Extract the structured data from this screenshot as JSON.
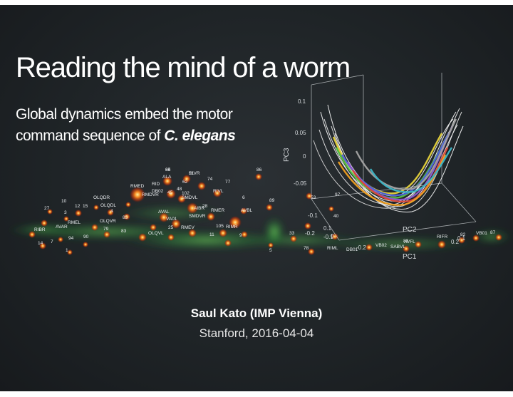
{
  "slide": {
    "title": "Reading the mind of a worm",
    "subtitle_line1": "Global dynamics embed the motor",
    "subtitle_line2_prefix": "command sequence of ",
    "subtitle_line2_species": "C. elegans",
    "author": "Saul Kato (IMP Vienna)",
    "venue_date": "Stanford, 2016-04-04"
  },
  "neuron_image": {
    "labels": [
      "34",
      "RIVR",
      "ALA",
      "74",
      "77",
      "RIVL",
      "86",
      "RMED",
      "RID",
      "62",
      "RMDVR",
      "45",
      "48",
      "OLQDR",
      "89",
      "10",
      "53",
      "97",
      "12",
      "15",
      "OLQDL",
      "27",
      "4",
      "RMER",
      "AVBL",
      "85",
      "RMEL",
      "OLQVR",
      "SMDVL",
      "AIBR",
      "RIMR",
      "79",
      "83",
      "OLQVL",
      "25",
      "RMEV",
      "33",
      "40",
      "90",
      "94",
      "14",
      "7",
      "1",
      "5",
      "11",
      "87",
      "RIML",
      "DB01",
      "VB02",
      "SABVL",
      "AVFL",
      "RIFR",
      "VB01",
      "DB02",
      "VA01",
      "SMDVR",
      "AVAL",
      "RIBR",
      "AVAR",
      "3",
      "6",
      "9",
      "78",
      "82",
      "88",
      "105",
      "102",
      "28",
      "65",
      "51"
    ],
    "plot_axis_ticks": [
      "0.1",
      "0.05",
      "0",
      "-0.05",
      "-0.1",
      "-0.2",
      "0.1",
      "0",
      "0.2",
      "0.1",
      "-0.1",
      "-0.2"
    ],
    "plot_axis_labels": [
      "PC3",
      "PC2",
      "PC1"
    ]
  },
  "colors": {
    "background": "#1f2427",
    "text": "#ffffff",
    "neuron_glow": "#ff6a1a",
    "tissue_green": "#3fa84a"
  }
}
